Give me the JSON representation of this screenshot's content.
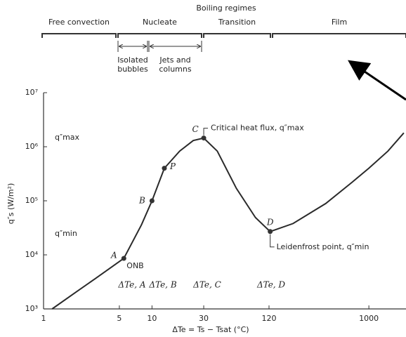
{
  "chart_data": {
    "type": "line",
    "log_x": true,
    "log_y": true,
    "color": "#2a2a2a",
    "regimes_title": "Boiling regimes",
    "regimes": [
      "Free convection",
      "Nucleate",
      "Transition",
      "Film"
    ],
    "nucleate_subregimes": [
      [
        "Isolated",
        "bubbles"
      ],
      [
        "Jets and",
        "columns"
      ]
    ],
    "x_label": "ΔTe = Ts − Tsat (°C)",
    "y_label": "q″s (W/m²)",
    "side_labels": [
      "q″max",
      "q″min"
    ],
    "delta_labels": [
      "ΔTe, A",
      "ΔTe, B",
      "ΔTe, C",
      "ΔTe, D"
    ],
    "x": [
      1.2,
      2,
      3,
      5.5,
      8,
      10,
      13,
      18,
      24,
      30,
      40,
      60,
      90,
      123,
      200,
      400,
      700,
      1000,
      1500,
      2100
    ],
    "values": [
      1000,
      2060,
      3640,
      8600,
      36000,
      100000,
      400000,
      830000,
      1300000,
      1450000,
      830000,
      170000,
      49000,
      27000,
      38000,
      89000,
      220000,
      400000,
      830000,
      1800000
    ],
    "points": [
      {
        "label": "A",
        "x": 5.5,
        "y": 8600,
        "note": "ONB"
      },
      {
        "label": "B",
        "x": 10,
        "y": 100000
      },
      {
        "label": "P",
        "x": 13,
        "y": 400000
      },
      {
        "label": "C",
        "x": 30,
        "y": 1450000,
        "note": "Critical heat flux, q″max"
      },
      {
        "label": "D",
        "x": 123,
        "y": 27000,
        "note": "Leidenfrost point, q″min"
      }
    ],
    "xlim": [
      1,
      2200
    ],
    "ylim": [
      1000,
      10000000
    ],
    "xticks": [
      1,
      5,
      10,
      30,
      120,
      1000
    ],
    "yticks": [
      {
        "value": 1000,
        "label": "10³"
      },
      {
        "value": 10000,
        "label": "10⁴"
      },
      {
        "value": 100000,
        "label": "10⁵"
      },
      {
        "value": 1000000,
        "label": "10⁶"
      },
      {
        "value": 10000000,
        "label": "10⁷"
      }
    ]
  }
}
